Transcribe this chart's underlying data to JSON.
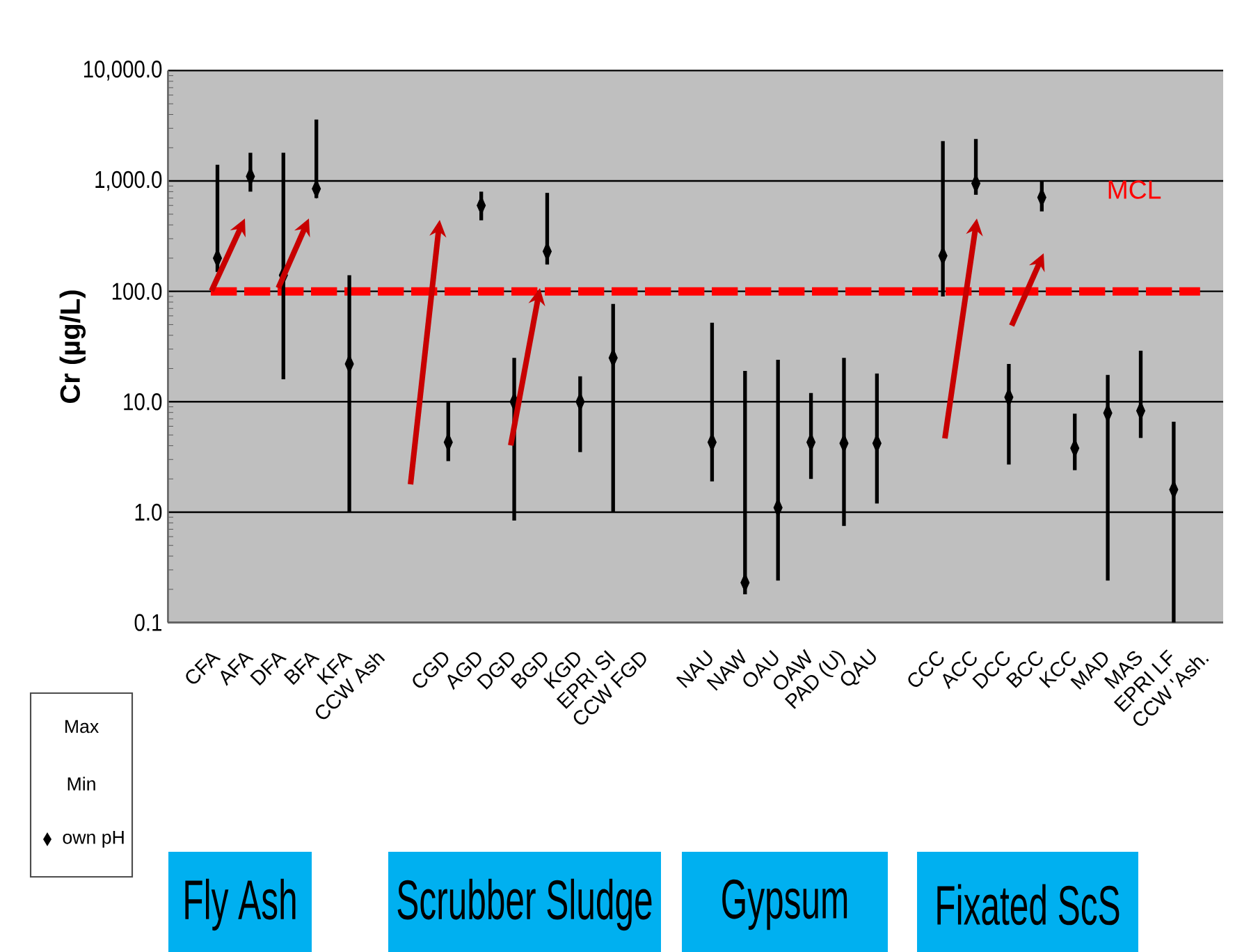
{
  "chart_data": {
    "type": "scatter",
    "ylabel": "Cr (µg/L)",
    "categories": [
      null,
      "CFA",
      "AFA",
      "DFA",
      "BFA",
      "KFA",
      "CCW Ash",
      null,
      "CGD",
      "AGD",
      "DGD",
      "BGD",
      "KGD",
      "EPRI SI",
      "CCW FGD",
      null,
      "NAU",
      "NAW",
      "OAU",
      "OAW",
      "PAD (U)",
      "QAU",
      null,
      "CCC",
      "ACC",
      "DCC",
      "BCC",
      "KCC",
      "MAD",
      "MAS",
      "EPRI LF",
      "CCW 'Ash."
    ],
    "series": [
      {
        "name": "own pH",
        "color": "#000000",
        "values": [
          null,
          200,
          1100,
          140,
          850,
          22,
          null,
          null,
          4.3,
          600,
          10,
          230,
          10,
          25,
          null,
          null,
          4.3,
          0.23,
          1.1,
          4.3,
          4.2,
          4.2,
          null,
          210,
          950,
          11,
          710,
          3.8,
          7.9,
          8.3,
          1.6,
          null
        ],
        "errors": [
          null,
          [
            150,
            1400
          ],
          [
            800,
            1800
          ],
          [
            16,
            1800
          ],
          [
            700,
            3600
          ],
          [
            1.0,
            140
          ],
          null,
          null,
          [
            2.9,
            10
          ],
          [
            440,
            800
          ],
          [
            0.84,
            25
          ],
          [
            175,
            780
          ],
          [
            3.5,
            17
          ],
          [
            1.0,
            77
          ],
          null,
          null,
          [
            1.9,
            52
          ],
          [
            0.18,
            19
          ],
          [
            0.24,
            24
          ],
          [
            2.0,
            12
          ],
          [
            0.75,
            25
          ],
          [
            1.2,
            18
          ],
          null,
          [
            90,
            2300
          ],
          [
            750,
            2400
          ],
          [
            2.7,
            22
          ],
          [
            530,
            1000
          ],
          [
            2.4,
            7.8
          ],
          [
            0.24,
            17.5
          ],
          [
            4.7,
            29
          ],
          [
            0.1,
            6.6
          ],
          null
        ]
      }
    ],
    "log": "y",
    "ylim": [
      0.1,
      10000
    ],
    "yticks": [
      {
        "value": 0.1,
        "label": "0.1"
      },
      {
        "value": 1,
        "label": "1.0"
      },
      {
        "value": 10,
        "label": "10.0"
      },
      {
        "value": 100,
        "label": "100.0"
      },
      {
        "value": 1000,
        "label": "1,000.0"
      },
      {
        "value": 10000,
        "label": "10,000.0"
      }
    ],
    "grid": "y",
    "marker": "diamond",
    "legend": "bottom left",
    "ref_lines": [
      {
        "axis": "y",
        "value": 100,
        "label": "MCL",
        "color": "#ff0000",
        "line_style": "dashed"
      }
    ],
    "annotations": [
      "Max",
      "Min",
      "Fly Ash",
      "Scrubber Sludge",
      "Gypsum",
      "Fixated ScS"
    ]
  }
}
